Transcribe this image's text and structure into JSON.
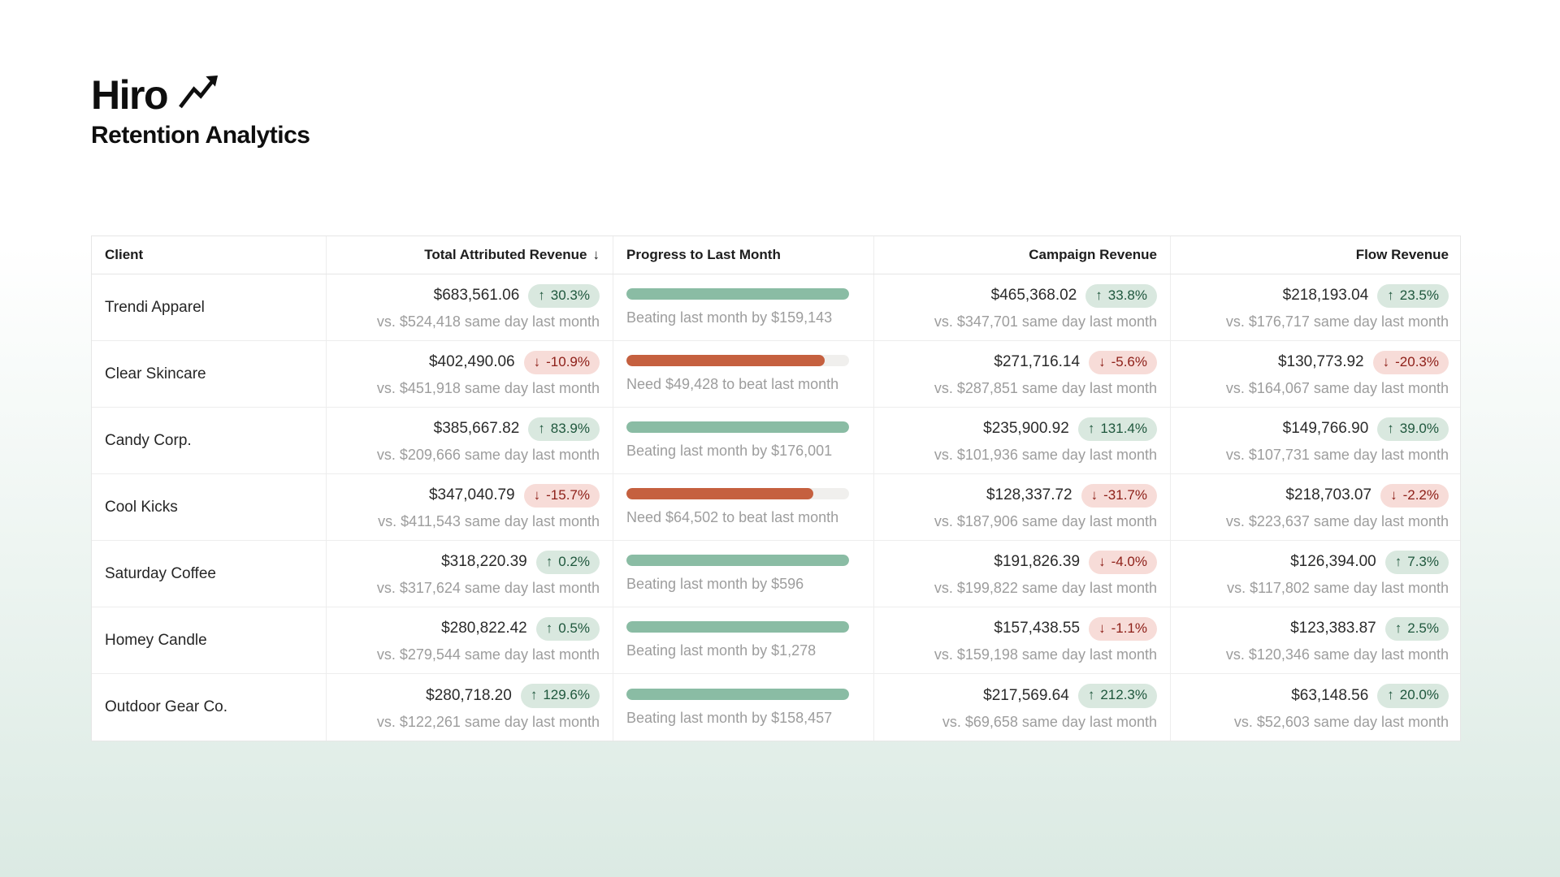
{
  "brand": {
    "name": "Hiro",
    "subtitle": "Retention Analytics",
    "icon": "trending-up-icon"
  },
  "icons": {
    "up": "↑",
    "down": "↓"
  },
  "colors": {
    "badge_up_bg": "#d9e8df",
    "badge_up_text": "#1f573d",
    "badge_down_bg": "#f7dcd8",
    "badge_down_text": "#8e2019",
    "progress_ahead": "#8abca4",
    "progress_behind": "#c5603f",
    "page_bottom_tint": "#dbeae3"
  },
  "table": {
    "columns": [
      {
        "label": "Client",
        "align": "left"
      },
      {
        "label": "Total Attributed Revenue",
        "align": "right",
        "sort_icon": "↓"
      },
      {
        "label": "Progress to Last Month",
        "align": "left"
      },
      {
        "label": "Campaign Revenue",
        "align": "right"
      },
      {
        "label": "Flow Revenue",
        "align": "right"
      }
    ],
    "rows": [
      {
        "client": "Trendi Apparel",
        "total": {
          "amount": "$683,561.06",
          "direction": "up",
          "change": "30.3%",
          "compare": "vs. $524,418 same day last month"
        },
        "progress": {
          "percent": 100,
          "state": "ahead",
          "label": "Beating last month by $159,143"
        },
        "campaign": {
          "amount": "$465,368.02",
          "direction": "up",
          "change": "33.8%",
          "compare": "vs. $347,701 same day last month"
        },
        "flow": {
          "amount": "$218,193.04",
          "direction": "up",
          "change": "23.5%",
          "compare": "vs. $176,717 same day last month"
        }
      },
      {
        "client": "Clear Skincare",
        "total": {
          "amount": "$402,490.06",
          "direction": "down",
          "change": "-10.9%",
          "compare": "vs. $451,918 same day last month"
        },
        "progress": {
          "percent": 89,
          "state": "behind",
          "label": "Need $49,428 to beat last month"
        },
        "campaign": {
          "amount": "$271,716.14",
          "direction": "down",
          "change": "-5.6%",
          "compare": "vs. $287,851 same day last month"
        },
        "flow": {
          "amount": "$130,773.92",
          "direction": "down",
          "change": "-20.3%",
          "compare": "vs. $164,067 same day last month"
        }
      },
      {
        "client": "Candy Corp.",
        "total": {
          "amount": "$385,667.82",
          "direction": "up",
          "change": "83.9%",
          "compare": "vs. $209,666 same day last month"
        },
        "progress": {
          "percent": 100,
          "state": "ahead",
          "label": "Beating last month by $176,001"
        },
        "campaign": {
          "amount": "$235,900.92",
          "direction": "up",
          "change": "131.4%",
          "compare": "vs. $101,936 same day last month"
        },
        "flow": {
          "amount": "$149,766.90",
          "direction": "up",
          "change": "39.0%",
          "compare": "vs. $107,731 same day last month"
        }
      },
      {
        "client": "Cool Kicks",
        "total": {
          "amount": "$347,040.79",
          "direction": "down",
          "change": "-15.7%",
          "compare": "vs. $411,543 same day last month"
        },
        "progress": {
          "percent": 84,
          "state": "behind",
          "label": "Need $64,502 to beat last month"
        },
        "campaign": {
          "amount": "$128,337.72",
          "direction": "down",
          "change": "-31.7%",
          "compare": "vs. $187,906 same day last month"
        },
        "flow": {
          "amount": "$218,703.07",
          "direction": "down",
          "change": "-2.2%",
          "compare": "vs. $223,637 same day last month"
        }
      },
      {
        "client": "Saturday Coffee",
        "total": {
          "amount": "$318,220.39",
          "direction": "up",
          "change": "0.2%",
          "compare": "vs. $317,624 same day last month"
        },
        "progress": {
          "percent": 100,
          "state": "ahead",
          "label": "Beating last month by $596"
        },
        "campaign": {
          "amount": "$191,826.39",
          "direction": "down",
          "change": "-4.0%",
          "compare": "vs. $199,822 same day last month"
        },
        "flow": {
          "amount": "$126,394.00",
          "direction": "up",
          "change": "7.3%",
          "compare": "vs. $117,802 same day last month"
        }
      },
      {
        "client": "Homey Candle",
        "total": {
          "amount": "$280,822.42",
          "direction": "up",
          "change": "0.5%",
          "compare": "vs. $279,544 same day last month"
        },
        "progress": {
          "percent": 100,
          "state": "ahead",
          "label": "Beating last month by $1,278"
        },
        "campaign": {
          "amount": "$157,438.55",
          "direction": "down",
          "change": "-1.1%",
          "compare": "vs. $159,198 same day last month"
        },
        "flow": {
          "amount": "$123,383.87",
          "direction": "up",
          "change": "2.5%",
          "compare": "vs. $120,346 same day last month"
        }
      },
      {
        "client": "Outdoor Gear Co.",
        "total": {
          "amount": "$280,718.20",
          "direction": "up",
          "change": "129.6%",
          "compare": "vs. $122,261 same day last month"
        },
        "progress": {
          "percent": 100,
          "state": "ahead",
          "label": "Beating last month by $158,457"
        },
        "campaign": {
          "amount": "$217,569.64",
          "direction": "up",
          "change": "212.3%",
          "compare": "vs. $69,658 same day last month"
        },
        "flow": {
          "amount": "$63,148.56",
          "direction": "up",
          "change": "20.0%",
          "compare": "vs. $52,603 same day last month"
        }
      }
    ]
  }
}
